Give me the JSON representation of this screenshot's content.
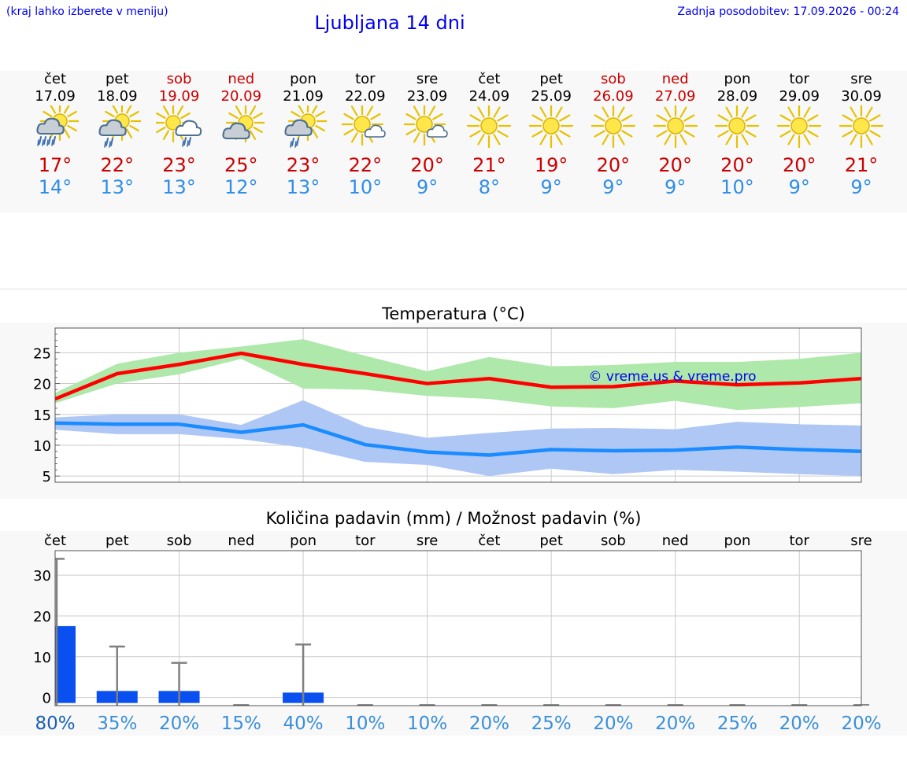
{
  "header": {
    "note": "(kraj lahko izberete v meniju)",
    "title": "Ljubljana 14 dni",
    "last_update": "Zadnja posodobitev: 17.09.2026 - 00:24"
  },
  "days": [
    {
      "name": "čet",
      "date": "17.09",
      "weekend": false,
      "icon": "rain-heavy-cloud-sun-icon",
      "tmax": "17°",
      "tmin": "14°",
      "precip_chance": "80%"
    },
    {
      "name": "pet",
      "date": "18.09",
      "weekend": false,
      "icon": "rain-cloud-sun-icon",
      "tmax": "22°",
      "tmin": "13°",
      "precip_chance": "35%"
    },
    {
      "name": "sob",
      "date": "19.09",
      "weekend": true,
      "icon": "sun-rain-cloud-icon",
      "tmax": "23°",
      "tmin": "13°",
      "precip_chance": "20%"
    },
    {
      "name": "ned",
      "date": "20.09",
      "weekend": true,
      "icon": "cloud-sun-icon",
      "tmax": "25°",
      "tmin": "12°",
      "precip_chance": "15%"
    },
    {
      "name": "pon",
      "date": "21.09",
      "weekend": false,
      "icon": "rain-cloud-sun-icon",
      "tmax": "23°",
      "tmin": "13°",
      "precip_chance": "40%"
    },
    {
      "name": "tor",
      "date": "22.09",
      "weekend": false,
      "icon": "sun-small-cloud-icon",
      "tmax": "22°",
      "tmin": "10°",
      "precip_chance": "10%"
    },
    {
      "name": "sre",
      "date": "23.09",
      "weekend": false,
      "icon": "sun-small-cloud-icon",
      "tmax": "20°",
      "tmin": "9°",
      "precip_chance": "10%"
    },
    {
      "name": "čet",
      "date": "24.09",
      "weekend": false,
      "icon": "sun-icon",
      "tmax": "21°",
      "tmin": "8°",
      "precip_chance": "20%"
    },
    {
      "name": "pet",
      "date": "25.09",
      "weekend": false,
      "icon": "sun-icon",
      "tmax": "19°",
      "tmin": "9°",
      "precip_chance": "25%"
    },
    {
      "name": "sob",
      "date": "26.09",
      "weekend": true,
      "icon": "sun-icon",
      "tmax": "20°",
      "tmin": "9°",
      "precip_chance": "20%"
    },
    {
      "name": "ned",
      "date": "27.09",
      "weekend": true,
      "icon": "sun-icon",
      "tmax": "20°",
      "tmin": "9°",
      "precip_chance": "20%"
    },
    {
      "name": "pon",
      "date": "28.09",
      "weekend": false,
      "icon": "sun-icon",
      "tmax": "20°",
      "tmin": "10°",
      "precip_chance": "25%"
    },
    {
      "name": "tor",
      "date": "29.09",
      "weekend": false,
      "icon": "sun-icon",
      "tmax": "20°",
      "tmin": "9°",
      "precip_chance": "20%"
    },
    {
      "name": "sre",
      "date": "30.09",
      "weekend": false,
      "icon": "sun-icon",
      "tmax": "21°",
      "tmin": "9°",
      "precip_chance": "20%"
    }
  ],
  "colors": {
    "max_line": "#ff0000",
    "max_band": "#aee8aa",
    "min_line": "#1a8cff",
    "min_band": "#afc7f5",
    "precip_bar": "#0a50f0",
    "error_bar": "#808080",
    "weekend_text": "#cc0000",
    "min_text": "#2f8ee8"
  },
  "chart_data": [
    {
      "type": "line",
      "title": "Temperatura (°C)",
      "watermark": "© vreme.us & vreme.pro",
      "x_days": [
        0,
        1,
        2,
        3,
        4,
        5,
        6,
        7,
        8,
        9,
        10,
        11,
        12,
        13
      ],
      "x_end": 13,
      "ylim": [
        4,
        29
      ],
      "yticks": [
        5,
        10,
        15,
        20,
        25
      ],
      "grid": true,
      "series": [
        {
          "key": "max",
          "values": [
            17.5,
            21.6,
            23.1,
            24.9,
            23.1,
            21.6,
            20.0,
            20.8,
            19.4,
            19.5,
            20.4,
            19.8,
            20.1,
            20.8
          ],
          "band_high": [
            18.5,
            23.2,
            25.0,
            26.0,
            27.2,
            24.5,
            22.0,
            24.3,
            22.8,
            23.0,
            23.5,
            23.5,
            24.0,
            25.0
          ],
          "band_low": [
            16.8,
            20.0,
            21.5,
            24.0,
            19.2,
            19.0,
            18.0,
            17.5,
            16.3,
            16.0,
            17.2,
            15.7,
            16.2,
            16.8
          ]
        },
        {
          "key": "min",
          "values": [
            13.6,
            13.4,
            13.4,
            12.1,
            13.3,
            10.1,
            8.9,
            8.4,
            9.3,
            9.1,
            9.2,
            9.7,
            9.3,
            9.0
          ],
          "band_high": [
            14.5,
            15.0,
            15.0,
            13.3,
            17.3,
            13.0,
            11.2,
            12.0,
            12.7,
            12.8,
            12.6,
            13.8,
            13.4,
            13.2
          ],
          "band_low": [
            12.5,
            11.8,
            11.8,
            11.0,
            9.6,
            7.3,
            6.8,
            5.0,
            6.2,
            5.3,
            6.0,
            5.7,
            5.3,
            5.0
          ]
        }
      ]
    },
    {
      "type": "bar",
      "title": "Količina padavin (mm) / Možnost padavin (%)",
      "categories": [
        "čet",
        "pet",
        "sob",
        "ned",
        "pon",
        "tor",
        "sre",
        "čet",
        "pet",
        "sob",
        "ned",
        "pon",
        "tor",
        "sre"
      ],
      "values": [
        17.5,
        1.6,
        1.6,
        0,
        1.2,
        0,
        0,
        0,
        0,
        0,
        0,
        0,
        0,
        0
      ],
      "error_high": [
        34,
        12.5,
        8.5,
        0,
        13,
        0,
        0,
        0,
        0,
        0,
        0,
        0,
        0,
        0
      ],
      "ylim": [
        -2,
        36
      ],
      "yticks": [
        0,
        10,
        20,
        30
      ],
      "grid": true
    }
  ]
}
